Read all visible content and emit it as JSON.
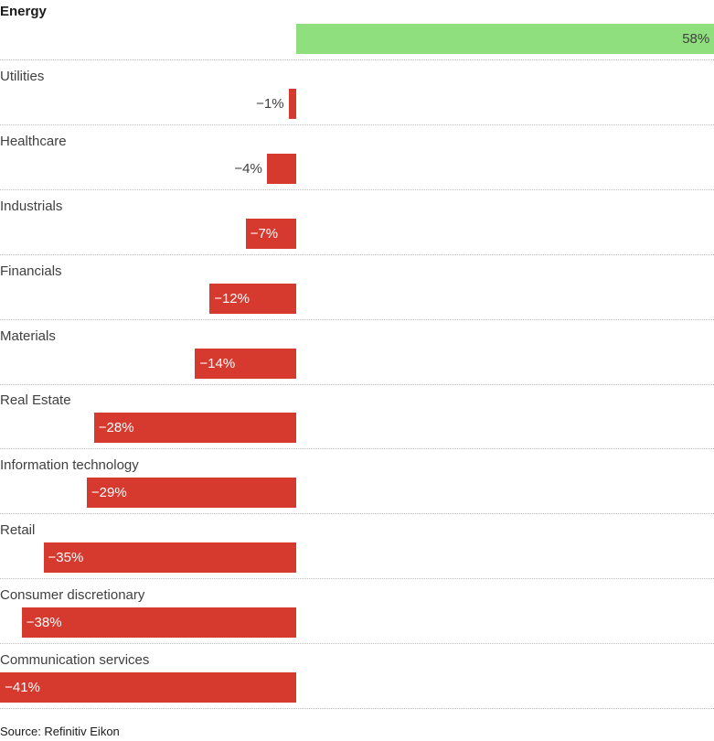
{
  "chart_data": {
    "type": "bar",
    "orientation": "horizontal",
    "categories": [
      "Energy",
      "Utilities",
      "Healthcare",
      "Industrials",
      "Financials",
      "Materials",
      "Real Estate",
      "Information technology",
      "Retail",
      "Consumer discretionary",
      "Communication services"
    ],
    "values": [
      58,
      -1,
      -4,
      -7,
      -12,
      -14,
      -28,
      -29,
      -35,
      -38,
      -41
    ],
    "value_labels": [
      "58%",
      "−1%",
      "−4%",
      "−7%",
      "−12%",
      "−14%",
      "−28%",
      "−29%",
      "−35%",
      "−38%",
      "−41%"
    ],
    "highlight_category": "Energy",
    "xlim": [
      -41,
      58
    ],
    "grid": false,
    "colors": {
      "positive": "#8fdf7f",
      "negative": "#d63a2f"
    }
  },
  "source": "Source: Refinitiv Eikon"
}
